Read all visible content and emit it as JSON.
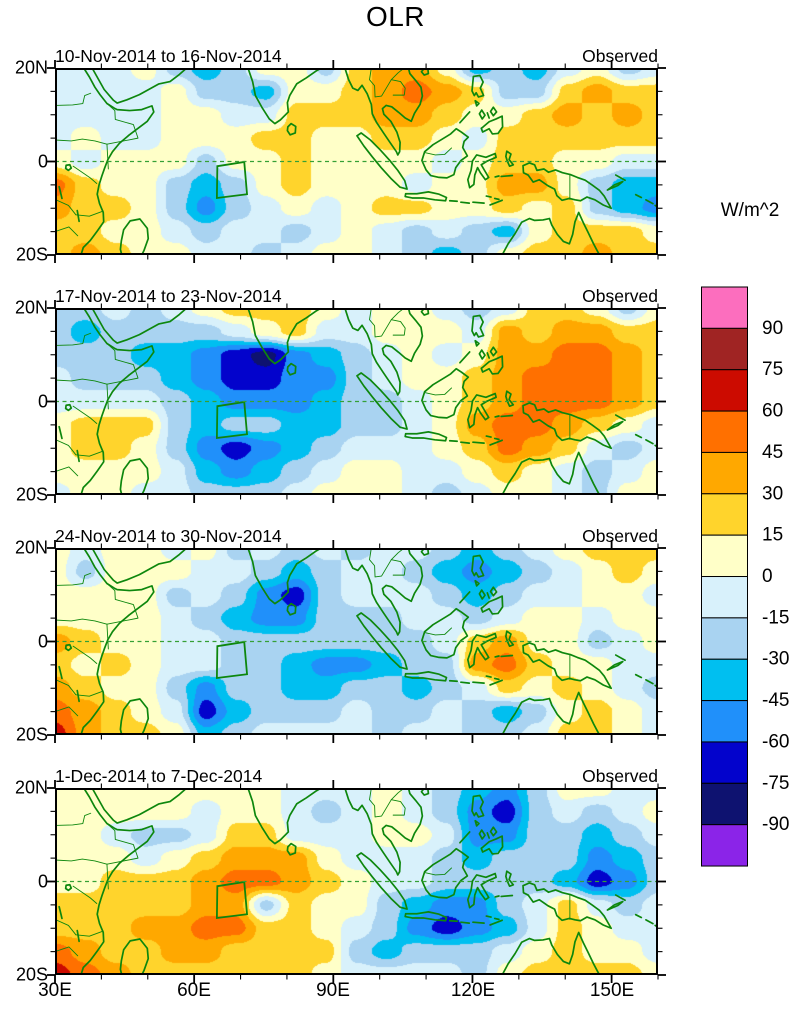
{
  "title": "OLR",
  "units_label": "W/m^2",
  "axis": {
    "x_ticks": [
      "30E",
      "60E",
      "90E",
      "120E",
      "150E"
    ],
    "y_ticks": [
      "20N",
      "0",
      "20S"
    ]
  },
  "colorbar": {
    "tick_labels": [
      "90",
      "75",
      "60",
      "45",
      "30",
      "15",
      "0",
      "-15",
      "-30",
      "-45",
      "-60",
      "-75",
      "-90"
    ],
    "colors_top_to_bottom": [
      "#FC6EBE",
      "#A02423",
      "#CC0B00",
      "#FF7000",
      "#FFA800",
      "#FFD42C",
      "#FFFFC8",
      "#D8F1FB",
      "#A9D3F1",
      "#00BFF0",
      "#2090FA",
      "#0303CC",
      "#0E1270",
      "#8B24E8"
    ]
  },
  "chart_data": {
    "type": "heatmap",
    "subtype": "filled_contour_map_panels",
    "title": "OLR",
    "units": "W/m^2",
    "lon_range": [
      30,
      160
    ],
    "lat_range": [
      -20,
      20
    ],
    "contour_interval": 15,
    "level_labels": [
      90,
      75,
      60,
      45,
      30,
      15,
      0,
      -15,
      -30,
      -45,
      -60,
      -75,
      -90
    ],
    "grid": {
      "lon_start": 30,
      "lon_step": 6.5,
      "lon_count": 21,
      "lat_start": 20,
      "lat_step": -5,
      "lat_count": 9
    },
    "index_box_lonlat": [
      [
        65.0,
        -1.0
      ],
      [
        70.8,
        -0.1
      ],
      [
        71.4,
        -7.0
      ],
      [
        64.9,
        -7.8
      ]
    ],
    "equator_dashed": true,
    "coastline_color": "#0d870d",
    "panels": [
      {
        "period": "10-Nov-2014 to 16-Nov-2014",
        "source": "Observed",
        "values": [
          [
            -8,
            -8,
            -8,
            8,
            -22,
            -38,
            -22,
            8,
            8,
            -22,
            22,
            38,
            38,
            8,
            -38,
            -22,
            -38,
            -8,
            8,
            -22,
            -8
          ],
          [
            -8,
            -8,
            -8,
            -8,
            8,
            -22,
            -22,
            -38,
            8,
            8,
            22,
            38,
            52,
            38,
            22,
            -22,
            -22,
            22,
            38,
            22,
            22
          ],
          [
            -8,
            -8,
            -8,
            -8,
            8,
            8,
            -8,
            -8,
            22,
            22,
            22,
            38,
            38,
            22,
            8,
            8,
            22,
            38,
            22,
            38,
            22
          ],
          [
            -8,
            8,
            -8,
            -8,
            8,
            8,
            8,
            22,
            22,
            8,
            8,
            22,
            22,
            8,
            -8,
            22,
            22,
            22,
            22,
            22,
            22
          ],
          [
            8,
            -8,
            8,
            8,
            8,
            -22,
            8,
            8,
            22,
            8,
            8,
            8,
            8,
            -8,
            8,
            22,
            22,
            8,
            8,
            -8,
            -8
          ],
          [
            52,
            22,
            8,
            8,
            -22,
            -38,
            -22,
            8,
            22,
            8,
            8,
            8,
            -8,
            8,
            8,
            38,
            38,
            8,
            -22,
            -38,
            -38
          ],
          [
            38,
            22,
            22,
            8,
            -22,
            -52,
            -22,
            -8,
            8,
            -8,
            8,
            22,
            22,
            8,
            8,
            22,
            8,
            22,
            -22,
            -38,
            -52
          ],
          [
            22,
            22,
            8,
            8,
            -8,
            -22,
            -8,
            -8,
            -22,
            -8,
            8,
            -8,
            -22,
            -8,
            -22,
            -38,
            8,
            22,
            22,
            22,
            8
          ],
          [
            22,
            38,
            22,
            8,
            8,
            -8,
            -8,
            -22,
            -8,
            8,
            8,
            -8,
            -22,
            -38,
            -22,
            8,
            22,
            22,
            38,
            22,
            22
          ]
        ]
      },
      {
        "period": "17-Nov-2014 to 23-Nov-2014",
        "source": "Observed",
        "values": [
          [
            -22,
            -22,
            -8,
            -22,
            -8,
            8,
            22,
            22,
            22,
            8,
            -8,
            8,
            8,
            -8,
            -22,
            -8,
            22,
            22,
            8,
            -22,
            8
          ],
          [
            -22,
            -38,
            -22,
            -22,
            -22,
            -22,
            -8,
            8,
            22,
            -8,
            -8,
            8,
            8,
            8,
            -8,
            38,
            22,
            38,
            38,
            22,
            22
          ],
          [
            -22,
            -22,
            -22,
            -38,
            -38,
            -52,
            -68,
            -82,
            -52,
            -38,
            -22,
            -8,
            8,
            -8,
            8,
            38,
            38,
            52,
            52,
            38,
            22
          ],
          [
            -8,
            -22,
            -22,
            -22,
            -38,
            -52,
            -68,
            -68,
            -52,
            -52,
            -22,
            -8,
            8,
            8,
            22,
            38,
            52,
            52,
            52,
            38,
            22
          ],
          [
            -8,
            -8,
            -8,
            -8,
            -22,
            -38,
            -52,
            -52,
            -52,
            -38,
            -22,
            -22,
            -8,
            8,
            22,
            38,
            52,
            52,
            52,
            38,
            22
          ],
          [
            8,
            22,
            22,
            22,
            -22,
            -38,
            -22,
            -22,
            -38,
            -38,
            -22,
            -22,
            -8,
            8,
            38,
            52,
            52,
            38,
            22,
            8,
            -8
          ],
          [
            8,
            22,
            22,
            8,
            -22,
            -52,
            -68,
            -52,
            -38,
            -22,
            -8,
            -8,
            -8,
            8,
            22,
            52,
            38,
            22,
            -8,
            -22,
            -8
          ],
          [
            8,
            8,
            8,
            8,
            -8,
            -38,
            -52,
            -38,
            -22,
            -8,
            8,
            8,
            -8,
            -8,
            8,
            22,
            8,
            -8,
            -22,
            -8,
            8
          ],
          [
            -8,
            8,
            8,
            -8,
            -8,
            -22,
            -22,
            -22,
            -8,
            8,
            8,
            8,
            -8,
            -22,
            -8,
            8,
            8,
            -8,
            -22,
            8,
            8
          ]
        ]
      },
      {
        "period": "24-Nov-2014 to 30-Nov-2014",
        "source": "Observed",
        "values": [
          [
            8,
            -8,
            8,
            8,
            -8,
            8,
            -22,
            -8,
            -22,
            -8,
            -22,
            -8,
            -8,
            -22,
            -38,
            -22,
            -8,
            8,
            22,
            22,
            22
          ],
          [
            8,
            -22,
            8,
            8,
            8,
            -8,
            -8,
            -22,
            -38,
            -22,
            -8,
            -8,
            -22,
            -38,
            -52,
            -38,
            -22,
            -8,
            8,
            22,
            8
          ],
          [
            8,
            8,
            8,
            8,
            -22,
            -8,
            -22,
            -52,
            -68,
            -22,
            -8,
            -8,
            -8,
            -22,
            -38,
            -22,
            -8,
            -8,
            8,
            8,
            -8
          ],
          [
            8,
            8,
            8,
            8,
            -8,
            -22,
            -38,
            -52,
            -52,
            -22,
            -22,
            -22,
            -8,
            -8,
            -22,
            -8,
            8,
            8,
            -8,
            8,
            8
          ],
          [
            38,
            22,
            8,
            8,
            -8,
            -8,
            -22,
            -22,
            -22,
            -22,
            -22,
            -22,
            -22,
            -8,
            22,
            38,
            8,
            8,
            -22,
            -8,
            8
          ],
          [
            22,
            8,
            22,
            8,
            -8,
            -8,
            -22,
            -22,
            -38,
            -52,
            -52,
            -38,
            -22,
            -22,
            38,
            52,
            22,
            8,
            8,
            -8,
            -8
          ],
          [
            38,
            22,
            8,
            8,
            -22,
            -52,
            -22,
            -22,
            -38,
            -38,
            -22,
            -22,
            -38,
            -22,
            -8,
            22,
            8,
            22,
            8,
            -8,
            -22
          ],
          [
            52,
            38,
            22,
            8,
            -8,
            -68,
            -38,
            -22,
            -22,
            -22,
            -8,
            -22,
            -22,
            -8,
            -22,
            -38,
            -22,
            8,
            22,
            8,
            -8
          ],
          [
            68,
            38,
            22,
            22,
            8,
            -38,
            -22,
            -8,
            -8,
            -8,
            -8,
            -22,
            -8,
            -8,
            -22,
            -22,
            -8,
            22,
            22,
            8,
            -8
          ]
        ]
      },
      {
        "period": "1-Dec-2014 to 7-Dec-2014",
        "source": "Observed",
        "values": [
          [
            8,
            8,
            8,
            8,
            8,
            8,
            8,
            8,
            -8,
            -8,
            -8,
            8,
            -8,
            -22,
            -38,
            -52,
            -22,
            8,
            8,
            -8,
            -8
          ],
          [
            8,
            8,
            8,
            8,
            8,
            -8,
            8,
            8,
            -8,
            -22,
            -8,
            8,
            -8,
            -22,
            -52,
            -68,
            -22,
            -8,
            -22,
            -8,
            8
          ],
          [
            8,
            8,
            -8,
            -22,
            -22,
            -8,
            22,
            22,
            -8,
            -8,
            -8,
            8,
            8,
            -8,
            -52,
            -52,
            -22,
            -22,
            -38,
            -22,
            -8
          ],
          [
            8,
            8,
            8,
            -8,
            8,
            22,
            38,
            38,
            38,
            8,
            -8,
            -8,
            -8,
            -22,
            -38,
            -22,
            -22,
            -22,
            -52,
            -38,
            -22
          ],
          [
            8,
            8,
            22,
            22,
            22,
            38,
            52,
            52,
            38,
            22,
            8,
            -8,
            -8,
            -22,
            -22,
            -22,
            -22,
            -38,
            -68,
            -52,
            -22
          ],
          [
            22,
            22,
            22,
            22,
            22,
            38,
            38,
            -22,
            22,
            8,
            8,
            -22,
            -38,
            -52,
            -52,
            -22,
            -8,
            22,
            -8,
            -22,
            -8
          ],
          [
            22,
            22,
            22,
            38,
            38,
            52,
            52,
            22,
            22,
            8,
            -8,
            -22,
            -52,
            -68,
            -52,
            -38,
            -8,
            22,
            8,
            -8,
            -8
          ],
          [
            52,
            38,
            22,
            22,
            38,
            38,
            22,
            22,
            22,
            22,
            -22,
            -38,
            -22,
            -22,
            -22,
            -8,
            8,
            22,
            8,
            8,
            -8
          ],
          [
            68,
            52,
            38,
            22,
            22,
            22,
            22,
            22,
            22,
            8,
            -8,
            -8,
            -8,
            -8,
            -22,
            8,
            22,
            22,
            22,
            22,
            8
          ]
        ]
      }
    ]
  }
}
